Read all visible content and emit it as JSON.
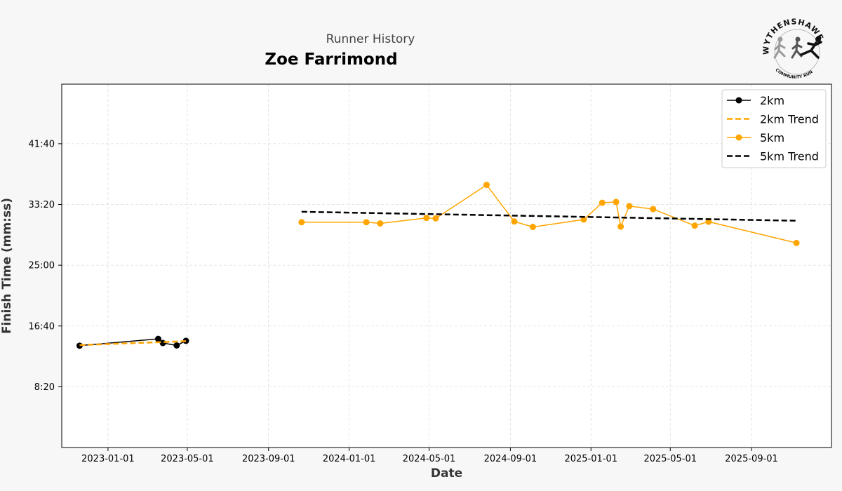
{
  "header": {
    "supertitle": "Runner History",
    "title": "Zoe Farrimond"
  },
  "logo": {
    "top_text": "WYTHENSHAWE",
    "bottom_text": "COMMUNITY RUN"
  },
  "chart_data": {
    "type": "line",
    "xlabel": "Date",
    "ylabel": "Finish Time (mm:ss)",
    "x_ticks": [
      "2023-01-01",
      "2023-05-01",
      "2023-09-01",
      "2024-01-01",
      "2024-05-01",
      "2024-09-01",
      "2025-01-01",
      "2025-05-01",
      "2025-09-01"
    ],
    "y_ticks": [
      "8:20",
      "16:40",
      "25:00",
      "33:20",
      "41:40"
    ],
    "y_tick_seconds": [
      500,
      1000,
      1500,
      2000,
      2500
    ],
    "xlim": [
      "2022-10-23",
      "2025-12-31"
    ],
    "ylim_seconds": [
      0,
      2990
    ],
    "grid": true,
    "legend_position": "top-right",
    "series": [
      {
        "name": "2km",
        "style": "solid-marker",
        "color": "#000000",
        "points": [
          {
            "date": "2022-11-19",
            "seconds": 838
          },
          {
            "date": "2023-03-18",
            "seconds": 894
          },
          {
            "date": "2023-03-25",
            "seconds": 860
          },
          {
            "date": "2023-04-15",
            "seconds": 840
          },
          {
            "date": "2023-04-29",
            "seconds": 878
          }
        ]
      },
      {
        "name": "2km Trend",
        "style": "dashed",
        "color": "#FFA500",
        "points": [
          {
            "date": "2022-11-19",
            "seconds": 843
          },
          {
            "date": "2023-04-29",
            "seconds": 875
          }
        ]
      },
      {
        "name": "5km",
        "style": "solid-marker",
        "color": "#FFA500",
        "points": [
          {
            "date": "2023-10-21",
            "seconds": 1854
          },
          {
            "date": "2024-01-27",
            "seconds": 1854
          },
          {
            "date": "2024-02-17",
            "seconds": 1844
          },
          {
            "date": "2024-04-27",
            "seconds": 1889
          },
          {
            "date": "2024-05-11",
            "seconds": 1886
          },
          {
            "date": "2024-07-27",
            "seconds": 2161
          },
          {
            "date": "2024-09-07",
            "seconds": 1860
          },
          {
            "date": "2024-10-05",
            "seconds": 1815
          },
          {
            "date": "2024-12-21",
            "seconds": 1876
          },
          {
            "date": "2025-01-18",
            "seconds": 2014
          },
          {
            "date": "2025-02-08",
            "seconds": 2021
          },
          {
            "date": "2025-02-15",
            "seconds": 1818
          },
          {
            "date": "2025-02-28",
            "seconds": 1987
          },
          {
            "date": "2025-04-05",
            "seconds": 1962
          },
          {
            "date": "2025-06-07",
            "seconds": 1826
          },
          {
            "date": "2025-06-28",
            "seconds": 1858
          },
          {
            "date": "2025-11-08",
            "seconds": 1683
          }
        ]
      },
      {
        "name": "5km Trend",
        "style": "dashed",
        "color": "#000000",
        "points": [
          {
            "date": "2023-10-21",
            "seconds": 1940
          },
          {
            "date": "2025-11-08",
            "seconds": 1866
          }
        ]
      }
    ]
  }
}
